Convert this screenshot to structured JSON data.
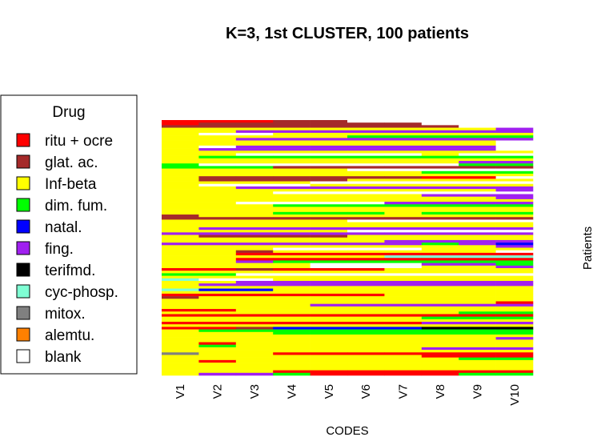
{
  "chart_data": {
    "type": "heatmap",
    "title": "K=3, 1st CLUSTER, 100 patients",
    "xlabel": "CODES",
    "ylabel": "Patients",
    "columns": [
      "V1",
      "V2",
      "V3",
      "V4",
      "V5",
      "V6",
      "V7",
      "V8",
      "V9",
      "V10"
    ],
    "n_patients": 100,
    "legend": {
      "title": "Drug",
      "placement": "left",
      "entries": [
        {
          "label": "ritu + ocre",
          "color": "#ff0000"
        },
        {
          "label": "glat. ac.",
          "color": "#a52a2a"
        },
        {
          "label": "Inf-beta",
          "color": "#ffff00"
        },
        {
          "label": "dim. fum.",
          "color": "#00ff00"
        },
        {
          "label": "natal.",
          "color": "#0000ff"
        },
        {
          "label": "fing.",
          "color": "#a020f0"
        },
        {
          "label": "terifmd.",
          "color": "#000000"
        },
        {
          "label": "cyc-phosp.",
          "color": "#7fffd4"
        },
        {
          "label": "mitox.",
          "color": "#808080"
        },
        {
          "label": "alemtu.",
          "color": "#ff8000"
        },
        {
          "label": "blank",
          "color": "#ffffff"
        }
      ]
    },
    "code_map": {
      "R": "ritu + ocre",
      "G": "glat. ac.",
      "I": "Inf-beta",
      "D": "dim. fum.",
      "N": "natal.",
      "F": "fing.",
      "T": "terifmd.",
      "C": "cyc-phosp.",
      "M": "mitox.",
      "A": "alemtu.",
      "_": "blank"
    },
    "rows": [
      "RRRGG_____",
      "RGGGGGG___",
      "GGGGGGGG__",
      "IIIIIIIIIF",
      "IIFFFFFFFF",
      "I__IIIIIII",
      "IIIIIDDDDD",
      "IIFFFFFFFF",
      "IIIIIIIII_",
      "IIIIIIIII_",
      "I_FFFFFFF_",
      "IFFFFFFFF_",
      "IIIIIIIIII",
      "II_____I__",
      "IDDDDDDDDD",
      "IIIIIIIIII",
      "IIIIIIIIFF",
      "D_______DD",
      "DDDGGGGGGG",
      "IIIII_____",
      "IIIIIIIDDD",
      "IIIIIIIIII",
      "IGGGGGGRR_",
      "IGGGGIIIII",
      "IIII______",
      "I___IIIIII",
      "IIFFFFFFFF",
      "IIIIIIIIIF",
      "III_______",
      "IIIIIIIFFF",
      "IIIIIIIIIF",
      "IIIIIIIIII",
      "II____FFFF",
      "IIIDDDDDDD",
      "IIIIIIIIII",
      "IIIIIIIIII",
      "IIIDDDIDDD",
      "GIIIIIIIII",
      "GGGGGGGGGG",
      "IIIII_____",
      "IIIIIIIIII",
      "IIIIIIIIII",
      "IFFFFFFFFF",
      "IIIII_____",
      "FFFFFFFFFF",
      "IGGGGIIIII",
      "IIIIIIIIII",
      "IIIIIIFFFF",
      "FFFFFFFDFN",
      "IIIIIIIIIF",
      "III____III",
      "IIGIIIIII_",
      "IIRRRRRRRR",
      "IIIIIICCCC",
      "IIRRRRRRRR",
      "IIFDDDDDDD",
      "IIII___FFD",
      "IIII___IIF",
      "RRGRRRIIII",
      "IIIIIIIIII",
      "DD________",
      "IIIIIIIIII",
      "C__IIIIIII",
      "IIFFFFFFFF",
      "IFFFFFFFFF",
      "IIIIIIIIII",
      "CNNIIIIIII",
      "IIIIIIIIII",
      "RRRRRRIIII",
      "GIIIIIIIII",
      "IIIIIIIIII",
      "IIIIIIIIIR",
      "IIIIFFFFFF",
      "IIIIIIIIII",
      "RRIIIIIIII",
      "IIIIIIIIDD",
      "RRRRRRRRRR",
      "IIIIIIIDDD",
      "IIIIIIIIII",
      "RRRRRRRFFF",
      "IIIIIIIIII",
      "RRGNNNNTTT",
      "IDDDDDDDDD",
      "IIIDDDDDDD",
      "IIIIIIIIII",
      "IIIIIIIIIF",
      "IIIIIIIIII",
      "IRIIIIIIII",
      "IDIIIIIIII",
      "IIIIIIIFFF",
      "IIIIIIIIII",
      "MIIRRRRRRR",
      "IIIIIIIRRR",
      "IIIIIIIIDD",
      "IRIIIIIIII",
      "IIIIIIIIII",
      "IIIIIIIIII",
      "IIIIIIIIII",
      "IIIRRRRRRR",
      "IFFDRRRRDD"
    ]
  }
}
